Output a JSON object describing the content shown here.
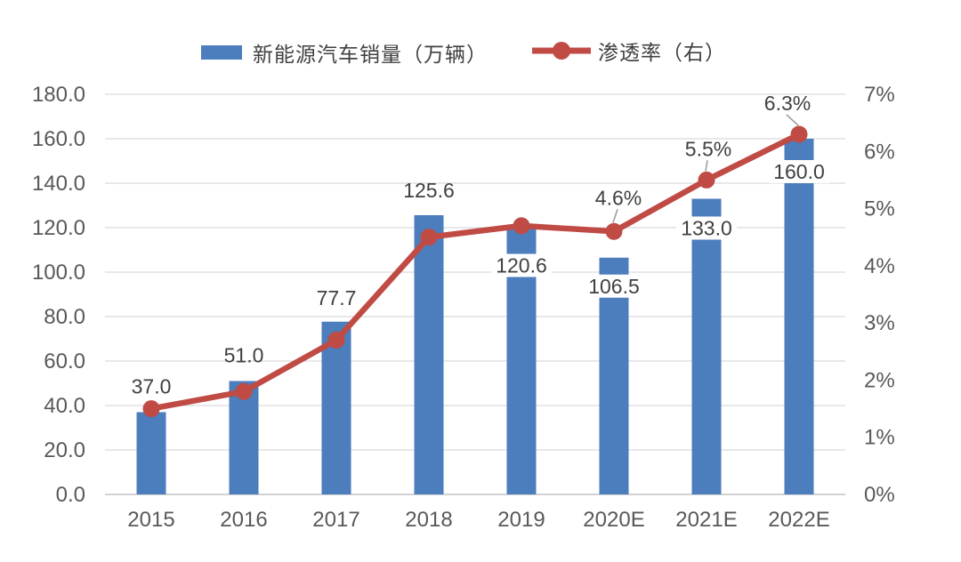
{
  "chart_data": {
    "type": "combo-bar-line",
    "title": "",
    "categories": [
      "2015",
      "2016",
      "2017",
      "2018",
      "2019",
      "2020E",
      "2021E",
      "2022E"
    ],
    "series": [
      {
        "name": "新能源汽车销量（万辆）",
        "type": "bar",
        "axis": "left",
        "color": "#4C7DBC",
        "values": [
          37.0,
          51.0,
          77.7,
          125.6,
          120.6,
          106.5,
          133.0,
          160.0
        ],
        "labels": [
          "37.0",
          "51.0",
          "77.7",
          "125.6",
          "120.6",
          "106.5",
          "133.0",
          "160.0"
        ]
      },
      {
        "name": "渗透率（右）",
        "type": "line",
        "axis": "right",
        "color": "#C04B45",
        "values": [
          1.5,
          1.8,
          2.7,
          4.5,
          4.7,
          4.6,
          5.5,
          6.3
        ],
        "labels": [
          "",
          "",
          "",
          "",
          "",
          "4.6%",
          "5.5%",
          "6.3%"
        ]
      }
    ],
    "left_axis": {
      "min": 0,
      "max": 180,
      "step": 20,
      "tick_labels": [
        "180.0",
        "160.0",
        "140.0",
        "120.0",
        "100.0",
        "80.0",
        "60.0",
        "40.0",
        "20.0",
        "0.0"
      ]
    },
    "right_axis": {
      "min": 0,
      "max": 7,
      "step": 1,
      "tick_labels": [
        "7%",
        "6%",
        "5%",
        "4%",
        "3%",
        "2%",
        "1%",
        "0%"
      ]
    },
    "grid": true,
    "legend_position": "top",
    "colors": {
      "grid": "#D9D9D9",
      "axis_line": "#C3C3C3",
      "tick_text": "#595959",
      "label_text": "#404040",
      "leader": "#9E9E9E",
      "background": "#FFFFFF"
    }
  }
}
